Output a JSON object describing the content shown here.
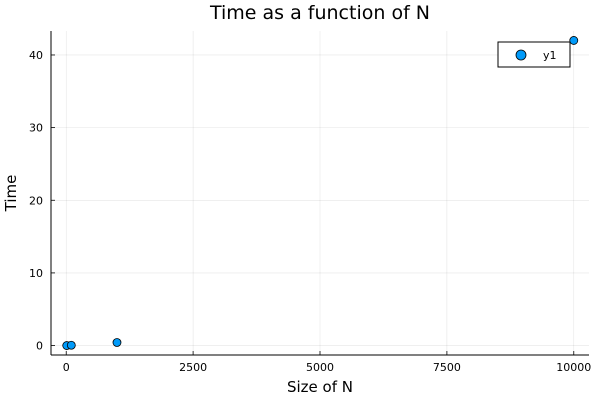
{
  "chart_data": {
    "type": "scatter",
    "title": "Time as a function of N",
    "xlabel": "Size of N",
    "ylabel": "Time",
    "xlim": [
      -300,
      10300
    ],
    "ylim": [
      -1.3,
      43.3
    ],
    "xticks": [
      0,
      2500,
      5000,
      7500,
      10000
    ],
    "xtick_labels": [
      "0",
      "2500",
      "5000",
      "7500",
      "10000"
    ],
    "yticks": [
      0,
      10,
      20,
      30,
      40
    ],
    "ytick_labels": [
      "0",
      "10",
      "20",
      "30",
      "40"
    ],
    "grid": true,
    "legend_position": "top-right",
    "series": [
      {
        "name": "y1",
        "color": "#009af9",
        "x": [
          10,
          100,
          1000,
          10000
        ],
        "y": [
          0.0,
          0.04,
          0.42,
          42.0
        ]
      }
    ]
  }
}
